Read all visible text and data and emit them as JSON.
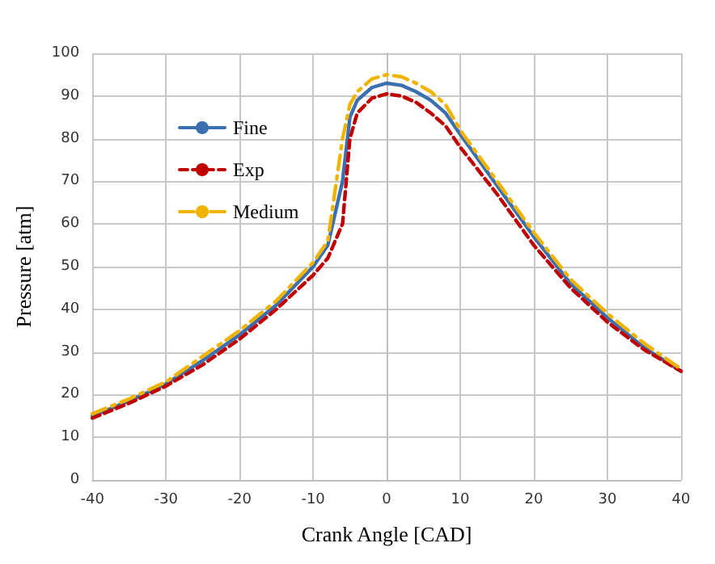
{
  "chart_data": {
    "type": "line",
    "xlabel": "Crank Angle [CAD]",
    "ylabel": "Pressure [atm]",
    "x": [
      -40,
      -35,
      -30,
      -25,
      -20,
      -15,
      -10,
      -8,
      -6,
      -5,
      -4,
      -2,
      0,
      2,
      4,
      6,
      8,
      10,
      15,
      20,
      25,
      30,
      35,
      40
    ],
    "series": [
      {
        "name": "Fine",
        "color": "#3b6fb0",
        "line_style": "solid",
        "values": [
          15,
          18.5,
          22.5,
          28,
          34,
          41,
          50,
          55,
          70,
          85,
          89,
          92,
          93,
          92.5,
          91,
          89,
          86,
          81,
          69,
          57,
          46,
          38,
          31,
          25.5
        ]
      },
      {
        "name": "Exp",
        "color": "#c00000",
        "line_style": "dashed",
        "values": [
          14.5,
          18,
          22,
          27,
          33,
          40,
          48,
          52,
          60,
          80,
          86,
          89.5,
          90.5,
          90,
          88.5,
          86,
          83,
          78,
          67,
          55,
          45,
          37,
          30.5,
          25.5
        ]
      },
      {
        "name": "Medium",
        "color": "#f0b400",
        "line_style": "dashdot",
        "values": [
          15.5,
          19,
          23,
          29,
          35,
          42,
          51,
          56,
          80,
          88,
          91,
          94,
          95,
          94.5,
          93,
          91,
          88,
          82,
          70,
          58,
          47,
          39,
          32,
          26
        ]
      }
    ],
    "xlim": [
      -40,
      40
    ],
    "xticks": [
      -40,
      -30,
      -20,
      -10,
      0,
      10,
      20,
      30,
      40
    ],
    "ylim": [
      0,
      100
    ],
    "yticks": [
      0,
      10,
      20,
      30,
      40,
      50,
      60,
      70,
      80,
      90,
      100
    ],
    "grid": true,
    "legend": "top left",
    "marker": "none"
  }
}
